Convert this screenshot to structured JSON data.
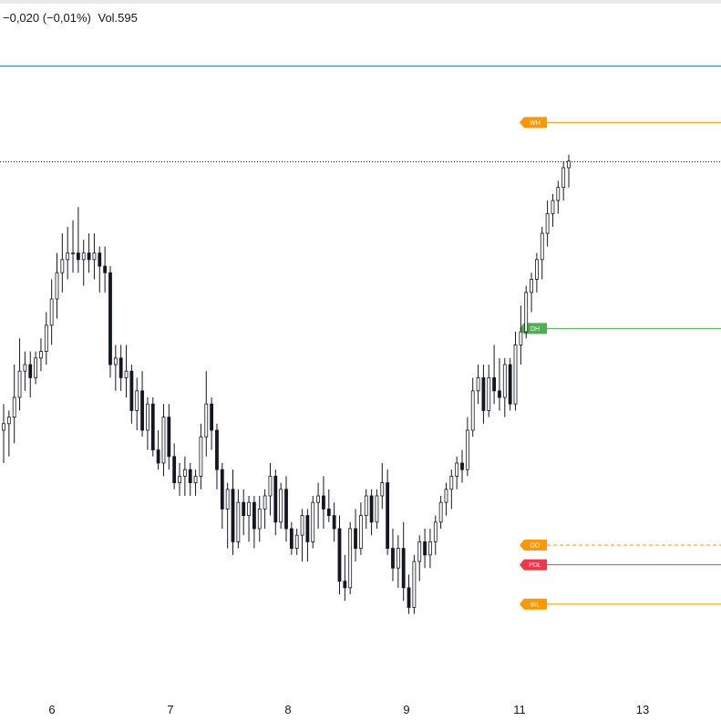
{
  "status": {
    "change": "−0,020 (−0,01%)",
    "volume": "Vol.595"
  },
  "colors": {
    "wick_and_body": "#131722",
    "up_fill": "#ffffff",
    "down_fill": "#131722",
    "blue_line": "#2962ff",
    "orange": "#ff9800",
    "green": "#4caf50",
    "red": "#f23645",
    "dotted": "#131722"
  },
  "chart_data": {
    "type": "candlestick",
    "x_tick_labels": [
      "6",
      "7",
      "8",
      "9",
      "11",
      "13"
    ],
    "y_range": [
      0,
      100
    ],
    "levels": [
      {
        "label": "",
        "value": 95.5,
        "color": "#2962ff",
        "style": "solid"
      },
      {
        "label": "WH",
        "value": 86.9,
        "color": "#ff9800",
        "style": "solid"
      },
      {
        "label": "",
        "value": 80.9,
        "color": "#131722",
        "style": "dotted"
      },
      {
        "label": "DH",
        "value": 55.5,
        "color": "#4caf50",
        "style": "solid"
      },
      {
        "label": "DO",
        "value": 22.5,
        "color": "#ff9800",
        "style": "dashed"
      },
      {
        "label": "PDL",
        "value": 19.5,
        "color": "#f23645",
        "style": "solid"
      },
      {
        "label": "WL",
        "value": 13.5,
        "color": "#ff9800",
        "style": "solid"
      }
    ],
    "candles": [
      [
        40,
        44,
        35,
        41
      ],
      [
        41,
        43,
        36,
        42
      ],
      [
        42,
        50,
        38,
        45
      ],
      [
        45,
        54,
        43,
        49
      ],
      [
        49,
        52,
        46,
        50
      ],
      [
        50,
        52,
        45,
        48
      ],
      [
        48,
        52,
        47,
        51
      ],
      [
        51,
        54,
        49,
        52
      ],
      [
        52,
        58,
        50,
        56
      ],
      [
        56,
        63,
        53,
        60
      ],
      [
        60,
        67,
        57,
        64
      ],
      [
        64,
        70,
        61,
        66
      ],
      [
        66,
        71,
        63,
        67
      ],
      [
        67,
        72,
        64,
        67
      ],
      [
        67,
        74,
        64,
        66
      ],
      [
        66,
        69,
        62,
        67
      ],
      [
        67,
        70,
        64,
        66
      ],
      [
        66,
        70,
        63,
        67
      ],
      [
        67,
        68,
        61,
        65
      ],
      [
        65,
        68,
        61,
        64
      ],
      [
        64,
        65,
        48,
        50
      ],
      [
        50,
        53,
        46,
        51
      ],
      [
        51,
        53,
        46,
        48
      ],
      [
        48,
        53,
        45,
        49
      ],
      [
        49,
        50,
        41,
        43
      ],
      [
        43,
        48,
        40,
        46
      ],
      [
        46,
        49,
        39,
        40
      ],
      [
        40,
        45,
        37,
        44
      ],
      [
        44,
        45,
        36,
        37
      ],
      [
        37,
        40,
        34,
        35
      ],
      [
        35,
        44,
        33,
        42
      ],
      [
        42,
        44,
        34,
        36
      ],
      [
        36,
        38,
        31,
        32
      ],
      [
        32,
        35,
        30,
        33
      ],
      [
        33,
        36,
        30,
        34
      ],
      [
        34,
        35,
        30,
        32
      ],
      [
        32,
        34,
        30,
        33
      ],
      [
        33,
        41,
        31,
        39
      ],
      [
        39,
        49,
        36,
        44
      ],
      [
        44,
        45,
        37,
        40
      ],
      [
        40,
        41,
        31,
        34
      ],
      [
        34,
        35,
        25,
        28
      ],
      [
        28,
        32,
        22,
        31
      ],
      [
        31,
        34,
        21,
        23
      ],
      [
        23,
        31,
        22,
        29
      ],
      [
        29,
        31,
        24,
        27
      ],
      [
        27,
        30,
        23,
        29
      ],
      [
        29,
        30,
        22,
        25
      ],
      [
        25,
        30,
        23,
        28
      ],
      [
        28,
        31,
        25,
        30
      ],
      [
        30,
        35,
        27,
        33
      ],
      [
        33,
        34,
        24,
        26
      ],
      [
        26,
        32,
        25,
        31
      ],
      [
        31,
        33,
        23,
        25
      ],
      [
        25,
        26,
        21,
        22
      ],
      [
        22,
        25,
        21,
        24
      ],
      [
        24,
        28,
        20,
        27
      ],
      [
        27,
        28,
        20,
        23
      ],
      [
        23,
        30,
        22,
        29
      ],
      [
        29,
        32,
        25,
        30
      ],
      [
        30,
        33,
        25,
        28
      ],
      [
        28,
        31,
        26,
        27
      ],
      [
        27,
        29,
        23,
        25
      ],
      [
        25,
        27,
        15,
        17
      ],
      [
        17,
        21,
        14,
        16
      ],
      [
        16,
        26,
        15,
        25
      ],
      [
        25,
        28,
        20,
        22
      ],
      [
        22,
        29,
        21,
        27
      ],
      [
        27,
        31,
        25,
        30
      ],
      [
        30,
        31,
        24,
        26
      ],
      [
        26,
        31,
        25,
        30
      ],
      [
        30,
        35,
        28,
        32
      ],
      [
        32,
        34,
        21,
        22
      ],
      [
        22,
        25,
        17,
        19
      ],
      [
        19,
        24,
        16,
        22
      ],
      [
        22,
        26,
        14,
        16
      ],
      [
        16,
        18,
        12,
        13
      ],
      [
        13,
        21,
        12,
        20
      ],
      [
        20,
        24,
        17,
        23
      ],
      [
        23,
        25,
        19,
        21
      ],
      [
        21,
        25,
        19,
        23
      ],
      [
        23,
        27,
        21,
        26
      ],
      [
        26,
        30,
        25,
        29
      ],
      [
        29,
        32,
        27,
        31
      ],
      [
        31,
        34,
        28,
        33
      ],
      [
        33,
        36,
        31,
        35
      ],
      [
        35,
        37,
        32,
        34
      ],
      [
        34,
        42,
        33,
        40
      ],
      [
        40,
        48,
        39,
        46
      ],
      [
        46,
        50,
        44,
        48
      ],
      [
        48,
        50,
        41,
        43
      ],
      [
        43,
        50,
        42,
        48
      ],
      [
        48,
        53,
        44,
        46
      ],
      [
        46,
        51,
        43,
        45
      ],
      [
        45,
        51,
        42,
        50
      ],
      [
        50,
        51,
        43,
        44
      ],
      [
        44,
        55,
        43,
        53
      ],
      [
        53,
        59,
        50,
        55
      ],
      [
        55,
        62,
        54,
        61
      ],
      [
        61,
        64,
        58,
        63
      ],
      [
        63,
        67,
        61,
        66
      ],
      [
        66,
        71,
        63,
        70
      ],
      [
        70,
        75,
        68,
        73
      ],
      [
        73,
        76,
        71,
        75
      ],
      [
        75,
        78,
        73,
        77
      ],
      [
        77,
        81,
        75,
        80
      ],
      [
        80,
        82,
        77,
        81
      ]
    ]
  }
}
